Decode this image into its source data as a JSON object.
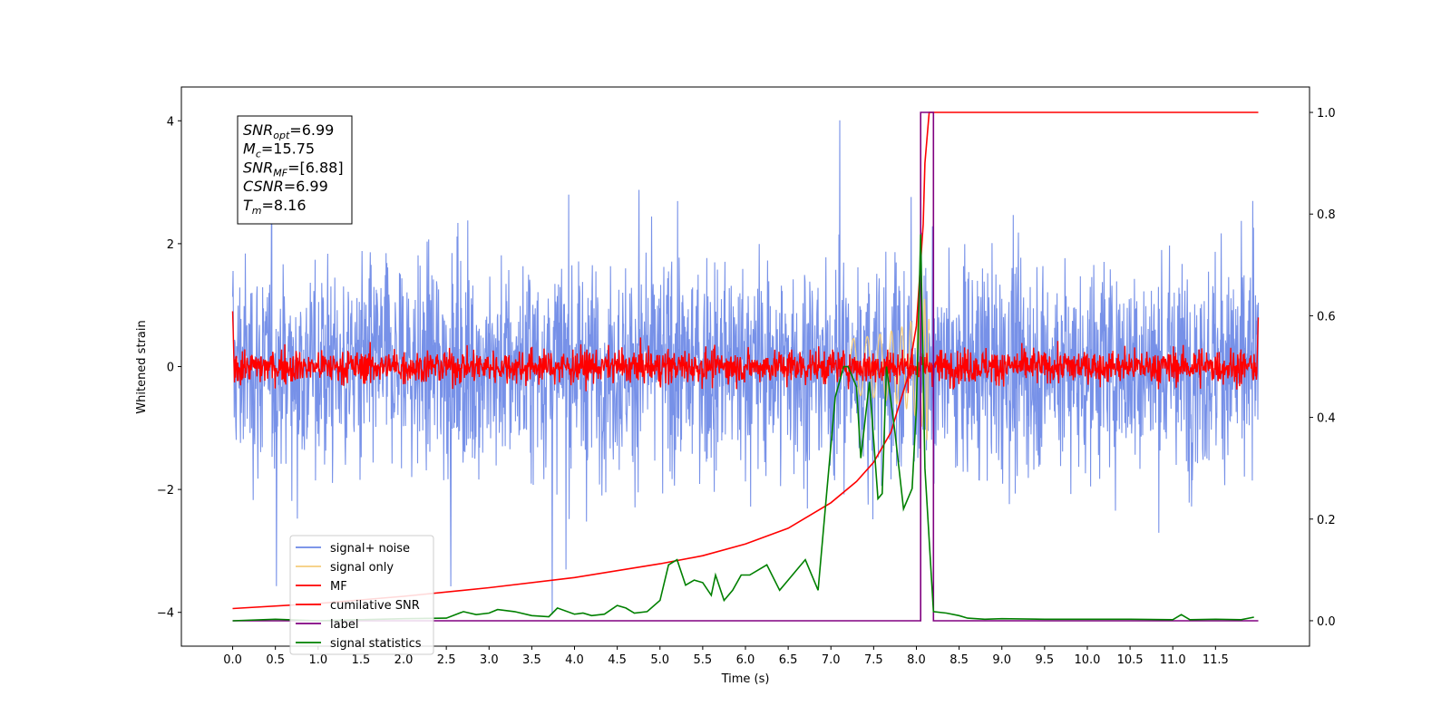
{
  "chart_data": {
    "type": "line",
    "title": "",
    "xlabel": "Time (s)",
    "ylabel": "Whitened strain",
    "y2label": "",
    "xlim": [
      -0.6,
      12.6
    ],
    "ylim": [
      -4.55,
      4.55
    ],
    "y2lim": [
      -0.05,
      1.05
    ],
    "xticks": [
      "0.0",
      "0.5",
      "1.0",
      "1.5",
      "2.0",
      "2.5",
      "3.0",
      "3.5",
      "4.0",
      "4.5",
      "5.0",
      "5.5",
      "6.0",
      "6.5",
      "7.0",
      "7.5",
      "8.0",
      "8.5",
      "9.0",
      "9.5",
      "10.0",
      "10.5",
      "11.0",
      "11.5"
    ],
    "yticks": [
      "-4",
      "-2",
      "0",
      "2",
      "4"
    ],
    "y2ticks": [
      "0.0",
      "0.2",
      "0.4",
      "0.6",
      "0.8",
      "1.0"
    ],
    "legend_position": "lower-left",
    "grid": false,
    "series": [
      {
        "name": "signal+ noise",
        "axis": "left",
        "color": "#6b88e6",
        "description": "whitened noisy strain, amplitude roughly ±3"
      },
      {
        "name": "signal only",
        "axis": "left",
        "color": "#f4cd7c",
        "description": "chirp visible near 7.5-8.1 s"
      },
      {
        "name": "MF",
        "axis": "left",
        "color": "#ff0000",
        "description": "matched filter output around 0"
      },
      {
        "name": "cumilative SNR",
        "axis": "right",
        "color": "#ff0000",
        "x": [
          0.0,
          1.0,
          2.0,
          3.0,
          4.0,
          5.0,
          5.5,
          6.0,
          6.5,
          7.0,
          7.3,
          7.5,
          7.7,
          7.9,
          8.0,
          8.08,
          8.1,
          8.15,
          9.0,
          10.0,
          11.0,
          12.0
        ],
        "values": [
          0.024,
          0.034,
          0.048,
          0.065,
          0.085,
          0.112,
          0.128,
          0.151,
          0.182,
          0.232,
          0.274,
          0.312,
          0.37,
          0.48,
          0.58,
          0.78,
          0.9,
          1.0,
          1.0,
          1.0,
          1.0,
          1.0
        ]
      },
      {
        "name": "label",
        "axis": "right",
        "color": "#800080",
        "x": [
          0.0,
          8.05,
          8.05,
          8.2,
          8.2,
          12.0
        ],
        "values": [
          0.0,
          0.0,
          1.0,
          1.0,
          0.0,
          0.0
        ]
      },
      {
        "name": "signal statistics",
        "axis": "right",
        "color": "#008000",
        "x": [
          0.0,
          0.5,
          1.0,
          1.5,
          2.0,
          2.5,
          2.7,
          2.85,
          3.0,
          3.1,
          3.3,
          3.5,
          3.7,
          3.8,
          4.0,
          4.1,
          4.2,
          4.35,
          4.5,
          4.6,
          4.7,
          4.85,
          5.0,
          5.1,
          5.2,
          5.3,
          5.4,
          5.5,
          5.6,
          5.65,
          5.75,
          5.85,
          5.95,
          6.05,
          6.15,
          6.25,
          6.4,
          6.5,
          6.6,
          6.7,
          6.85,
          6.95,
          7.05,
          7.15,
          7.2,
          7.3,
          7.35,
          7.45,
          7.55,
          7.6,
          7.65,
          7.75,
          7.85,
          7.95,
          8.0,
          8.05,
          8.1,
          8.2,
          8.35,
          8.5,
          8.6,
          8.8,
          9.0,
          9.5,
          10.0,
          10.5,
          11.0,
          11.1,
          11.2,
          11.5,
          11.8,
          11.95
        ],
        "values": [
          0.0,
          0.003,
          0.0,
          0.002,
          0.004,
          0.005,
          0.018,
          0.012,
          0.015,
          0.022,
          0.018,
          0.01,
          0.008,
          0.025,
          0.013,
          0.015,
          0.01,
          0.013,
          0.03,
          0.025,
          0.015,
          0.018,
          0.04,
          0.11,
          0.12,
          0.07,
          0.08,
          0.075,
          0.05,
          0.09,
          0.04,
          0.06,
          0.09,
          0.09,
          0.1,
          0.11,
          0.06,
          0.08,
          0.1,
          0.12,
          0.06,
          0.25,
          0.44,
          0.5,
          0.5,
          0.46,
          0.32,
          0.47,
          0.24,
          0.25,
          0.5,
          0.37,
          0.22,
          0.26,
          0.42,
          0.76,
          0.3,
          0.018,
          0.015,
          0.01,
          0.005,
          0.003,
          0.004,
          0.003,
          0.003,
          0.003,
          0.002,
          0.012,
          0.002,
          0.003,
          0.002,
          0.007
        ]
      }
    ],
    "annotation_box": {
      "lines": [
        {
          "base": "SNR",
          "sub": "opt",
          "value": "=6.99"
        },
        {
          "base": "M",
          "sub": "c",
          "value": "=15.75"
        },
        {
          "base": "SNR",
          "sub": "MF",
          "value": "=[6.88]"
        },
        {
          "base": "CSNR",
          "sub": "",
          "value": "=6.99"
        },
        {
          "base": "T",
          "sub": "m",
          "value": "=8.16"
        }
      ]
    }
  }
}
